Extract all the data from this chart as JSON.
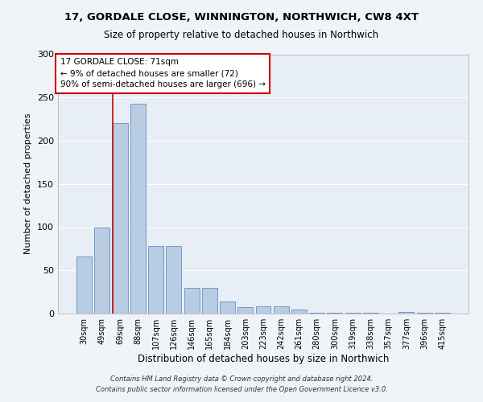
{
  "title": "17, GORDALE CLOSE, WINNINGTON, NORTHWICH, CW8 4XT",
  "subtitle": "Size of property relative to detached houses in Northwich",
  "xlabel": "Distribution of detached houses by size in Northwich",
  "ylabel": "Number of detached properties",
  "footnote1": "Contains HM Land Registry data © Crown copyright and database right 2024.",
  "footnote2": "Contains public sector information licensed under the Open Government Licence v3.0.",
  "bar_labels": [
    "30sqm",
    "49sqm",
    "69sqm",
    "88sqm",
    "107sqm",
    "126sqm",
    "146sqm",
    "165sqm",
    "184sqm",
    "203sqm",
    "223sqm",
    "242sqm",
    "261sqm",
    "280sqm",
    "300sqm",
    "319sqm",
    "338sqm",
    "357sqm",
    "377sqm",
    "396sqm",
    "415sqm"
  ],
  "bar_values": [
    66,
    100,
    220,
    243,
    78,
    78,
    30,
    30,
    14,
    7,
    8,
    8,
    5,
    1,
    1,
    1,
    1,
    0,
    2,
    1,
    1
  ],
  "bar_color": "#b8cce4",
  "bar_edge_color": "#7398c0",
  "annotation_text": "17 GORDALE CLOSE: 71sqm\n← 9% of detached houses are smaller (72)\n90% of semi-detached houses are larger (696) →",
  "annotation_box_color": "#ffffff",
  "annotation_border_color": "#cc0000",
  "ylim": [
    0,
    300
  ],
  "background_color": "#e8eef5",
  "grid_color": "#ffffff",
  "property_line_color": "#cc0000",
  "fig_width": 6.0,
  "fig_height": 5.0,
  "dpi": 100
}
